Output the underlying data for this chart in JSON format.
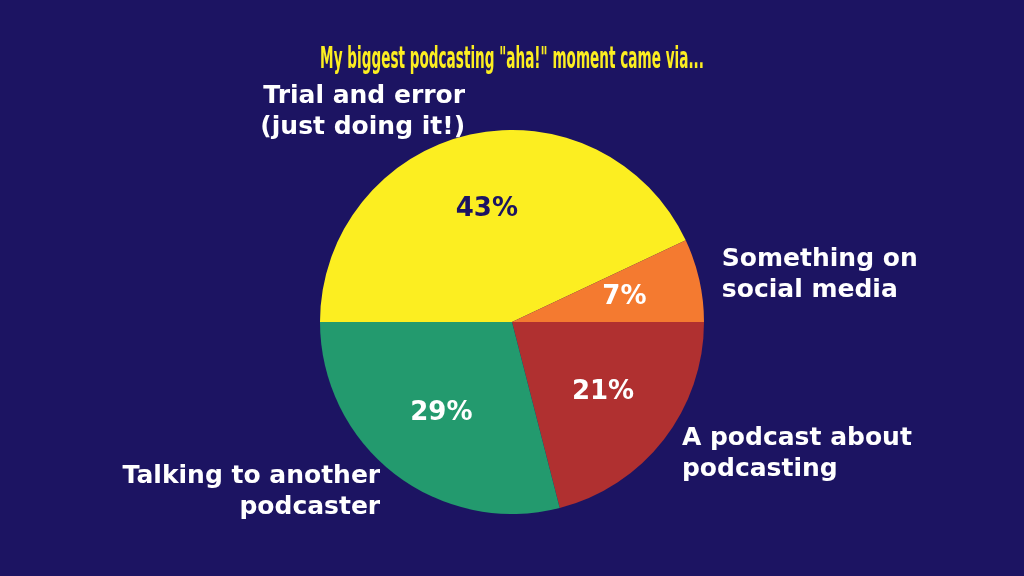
{
  "chart_data": {
    "type": "pie",
    "title": "My biggest podcasting \"aha!\" moment came via...",
    "categories": [
      "Trial and error\n(just doing it!)",
      "Something on\nsocial media",
      "A podcast about\npodcasting",
      "Talking to another\npodcaster"
    ],
    "values": [
      43,
      7,
      21,
      29
    ],
    "colors": [
      "#fcee21",
      "#f47a30",
      "#b03030",
      "#239a6e"
    ],
    "value_labels": [
      "43%",
      "7%",
      "21%",
      "29%"
    ],
    "legend": false
  }
}
